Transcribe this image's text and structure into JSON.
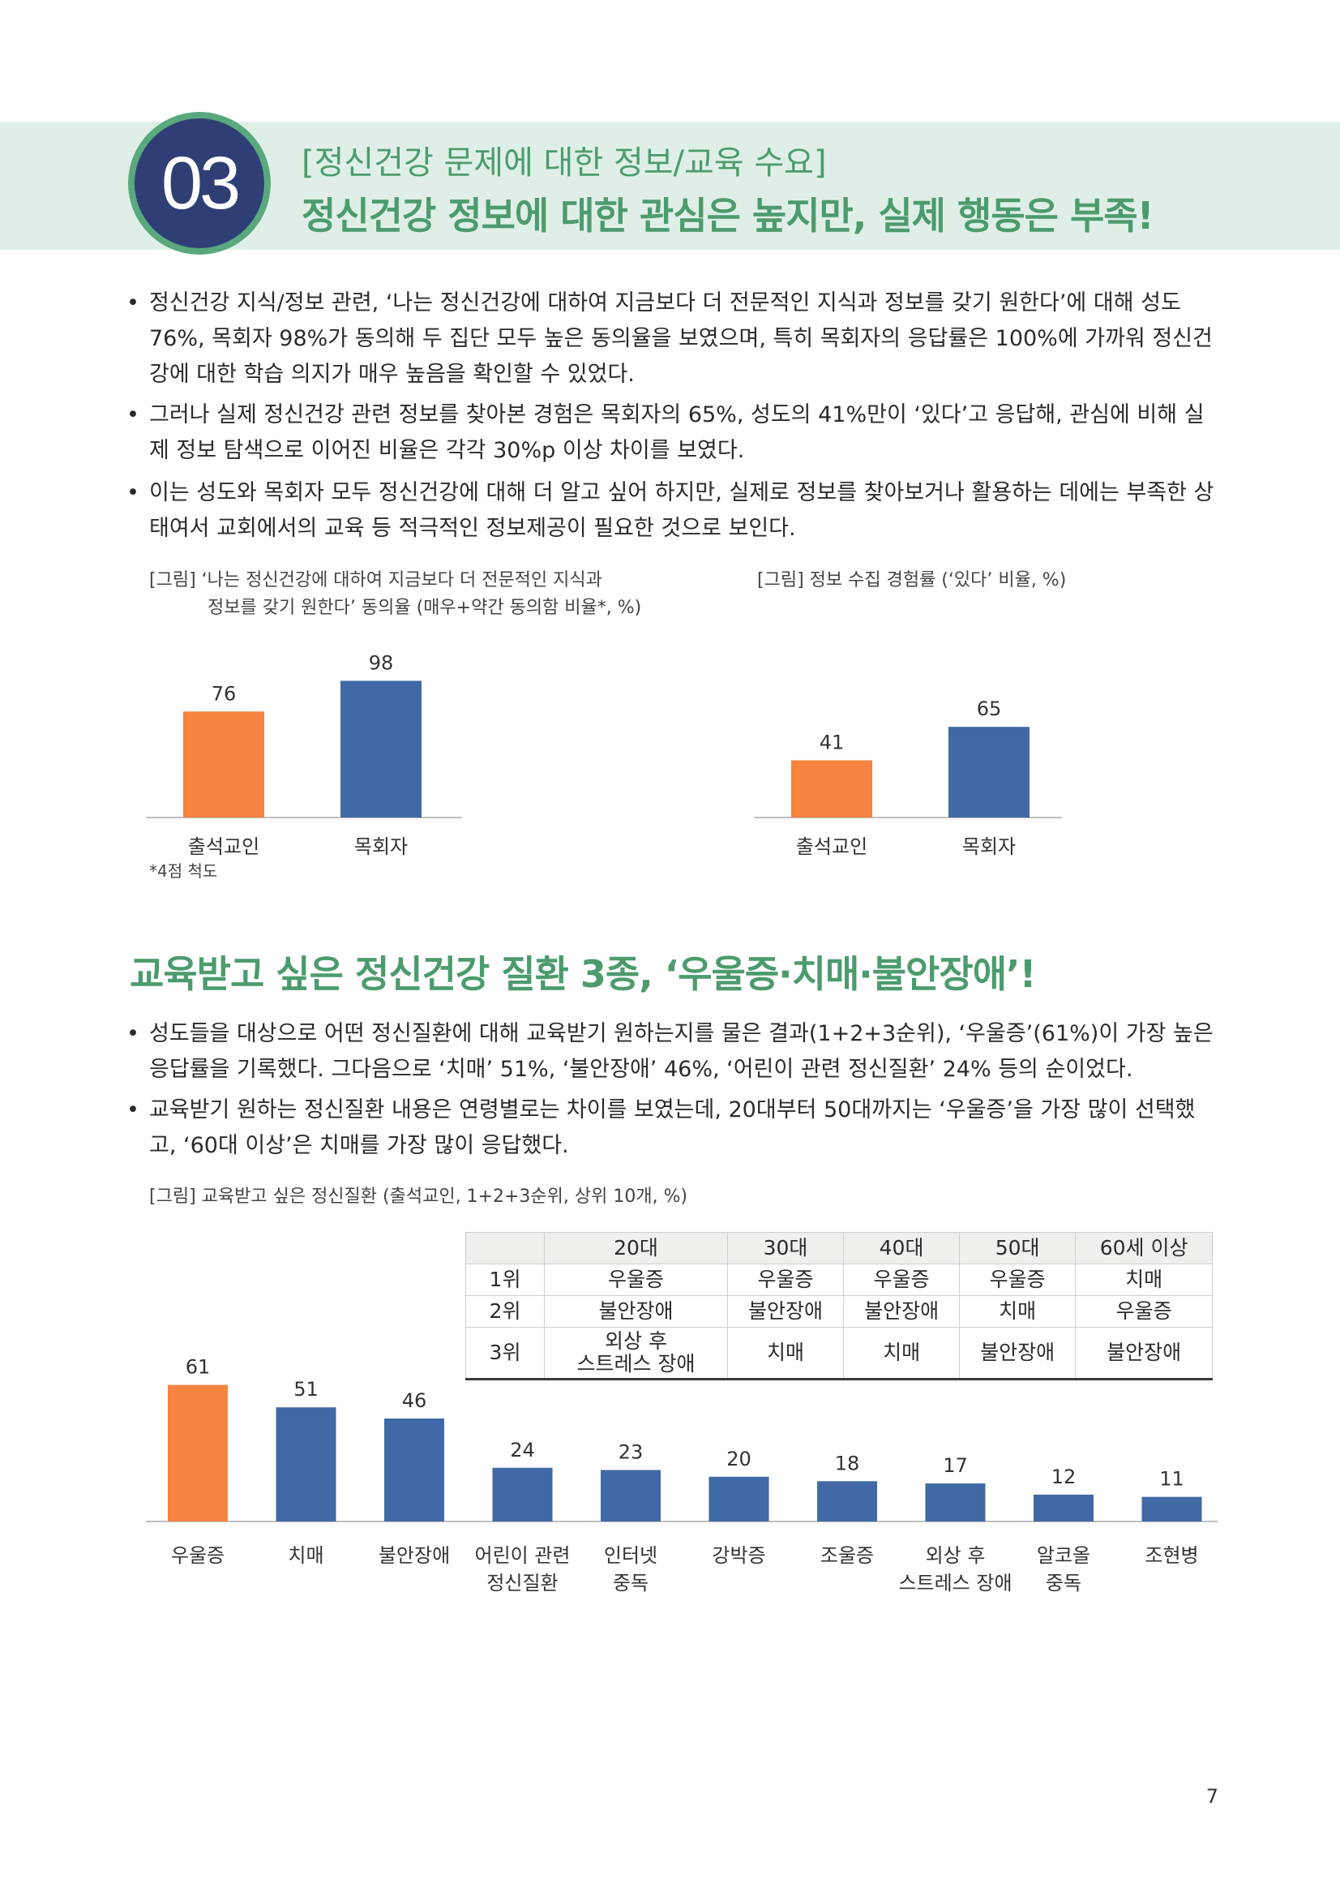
{
  "section": {
    "number": "03",
    "subtitle": "[정신건강 문제에 대한 정보/교육 수요]",
    "title": "정신건강 정보에 대한 관심은 높지만, 실제 행동은 부족!"
  },
  "bullets1": [
    "정신건강 지식/정보 관련, ‘나는 정신건강에 대하여 지금보다 더 전문적인 지식과 정보를 갖기 원한다’에 대해 성도 76%, 목회자 98%가 동의해 두 집단 모두 높은 동의율을 보였으며, 특히 목회자의 응답률은 100%에 가까워 정신건강에 대한 학습 의지가 매우 높음을 확인할 수 있었다.",
    "그러나 실제 정신건강 관련 정보를 찾아본 경험은 목회자의 65%, 성도의 41%만이 ‘있다’고 응답해, 관심에 비해 실제 정보 탐색으로 이어진 비율은 각각 30%p 이상 차이를 보였다.",
    "이는 성도와 목회자 모두 정신건강에 대해 더 알고 싶어 하지만, 실제로 정보를 찾아보거나 활용하는 데에는 부족한 상태여서 교회에서의 교육 등 적극적인 정보제공이 필요한 것으로 보인다."
  ],
  "fig1": {
    "caption_line1": "[그림] ‘나는 정신건강에 대하여 지금보다 더 전문적인 지식과",
    "caption_line2": "정보를 갖기 원한다’ 동의율 (매우+약간 동의함 비율*, %)",
    "footnote": "*4점 척도"
  },
  "fig2": {
    "caption": "[그림] 정보 수집 경험률 (‘있다’ 비율, %)"
  },
  "headline2": "교육받고 싶은 정신건강 질환 3종, ‘우울증·치매·불안장애’!",
  "bullets2": [
    "성도들을 대상으로 어떤 정신질환에 대해 교육받기 원하는지를 물은 결과(1+2+3순위), ‘우울증’(61%)이 가장 높은 응답률을 기록했다. 그다음으로 ‘치매’ 51%, ‘불안장애’ 46%, ‘어린이 관련 정신질환’ 24% 등의 순이었다.",
    "교육받기 원하는 정신질환 내용은 연령별로는 차이를 보였는데, 20대부터 50대까지는 ‘우울증’을 가장 많이 선택했고, ‘60대 이상’은 치매를 가장 많이 응답했다."
  ],
  "fig3": {
    "caption": "[그림] 교육받고 싶은 정신질환 (출석교인, 1+2+3순위, 상위 10개, %)"
  },
  "age_table": {
    "headers": [
      "",
      "20대",
      "30대",
      "40대",
      "50대",
      "60세 이상"
    ],
    "rows": [
      [
        "1위",
        "우울증",
        "우울증",
        "우울증",
        "우울증",
        "치매"
      ],
      [
        "2위",
        "불안장애",
        "불안장애",
        "불안장애",
        "치매",
        "우울증"
      ],
      [
        "3위",
        "외상 후\n스트레스 장애",
        "치매",
        "치매",
        "불안장애",
        "불안장애"
      ]
    ]
  },
  "colors": {
    "orange": "#f4843f",
    "blue": "#4169a5",
    "green": "#4c9b6e",
    "navy": "#2f3f75"
  },
  "chart_data": [
    {
      "type": "bar",
      "categories": [
        "출석교인",
        "목회자"
      ],
      "values": [
        76,
        98
      ],
      "colors": [
        "#f4843f",
        "#4169a5"
      ],
      "ylim": [
        0,
        100
      ]
    },
    {
      "type": "bar",
      "categories": [
        "출석교인",
        "목회자"
      ],
      "values": [
        41,
        65
      ],
      "colors": [
        "#f4843f",
        "#4169a5"
      ],
      "ylim": [
        0,
        100
      ]
    },
    {
      "type": "bar",
      "categories": [
        [
          "우울증"
        ],
        [
          "치매"
        ],
        [
          "불안장애"
        ],
        [
          "어린이 관련",
          "정신질환"
        ],
        [
          "인터넷",
          "중독"
        ],
        [
          "강박증"
        ],
        [
          "조울증"
        ],
        [
          "외상 후",
          "스트레스 장애"
        ],
        [
          "알코올",
          "중독"
        ],
        [
          "조현병"
        ]
      ],
      "values": [
        61,
        51,
        46,
        24,
        23,
        20,
        18,
        17,
        12,
        11
      ],
      "colors": [
        "#f4843f",
        "#4169a5",
        "#4169a5",
        "#4169a5",
        "#4169a5",
        "#4169a5",
        "#4169a5",
        "#4169a5",
        "#4169a5",
        "#4169a5"
      ],
      "ylim": [
        0,
        100
      ]
    }
  ],
  "page_number": "7"
}
